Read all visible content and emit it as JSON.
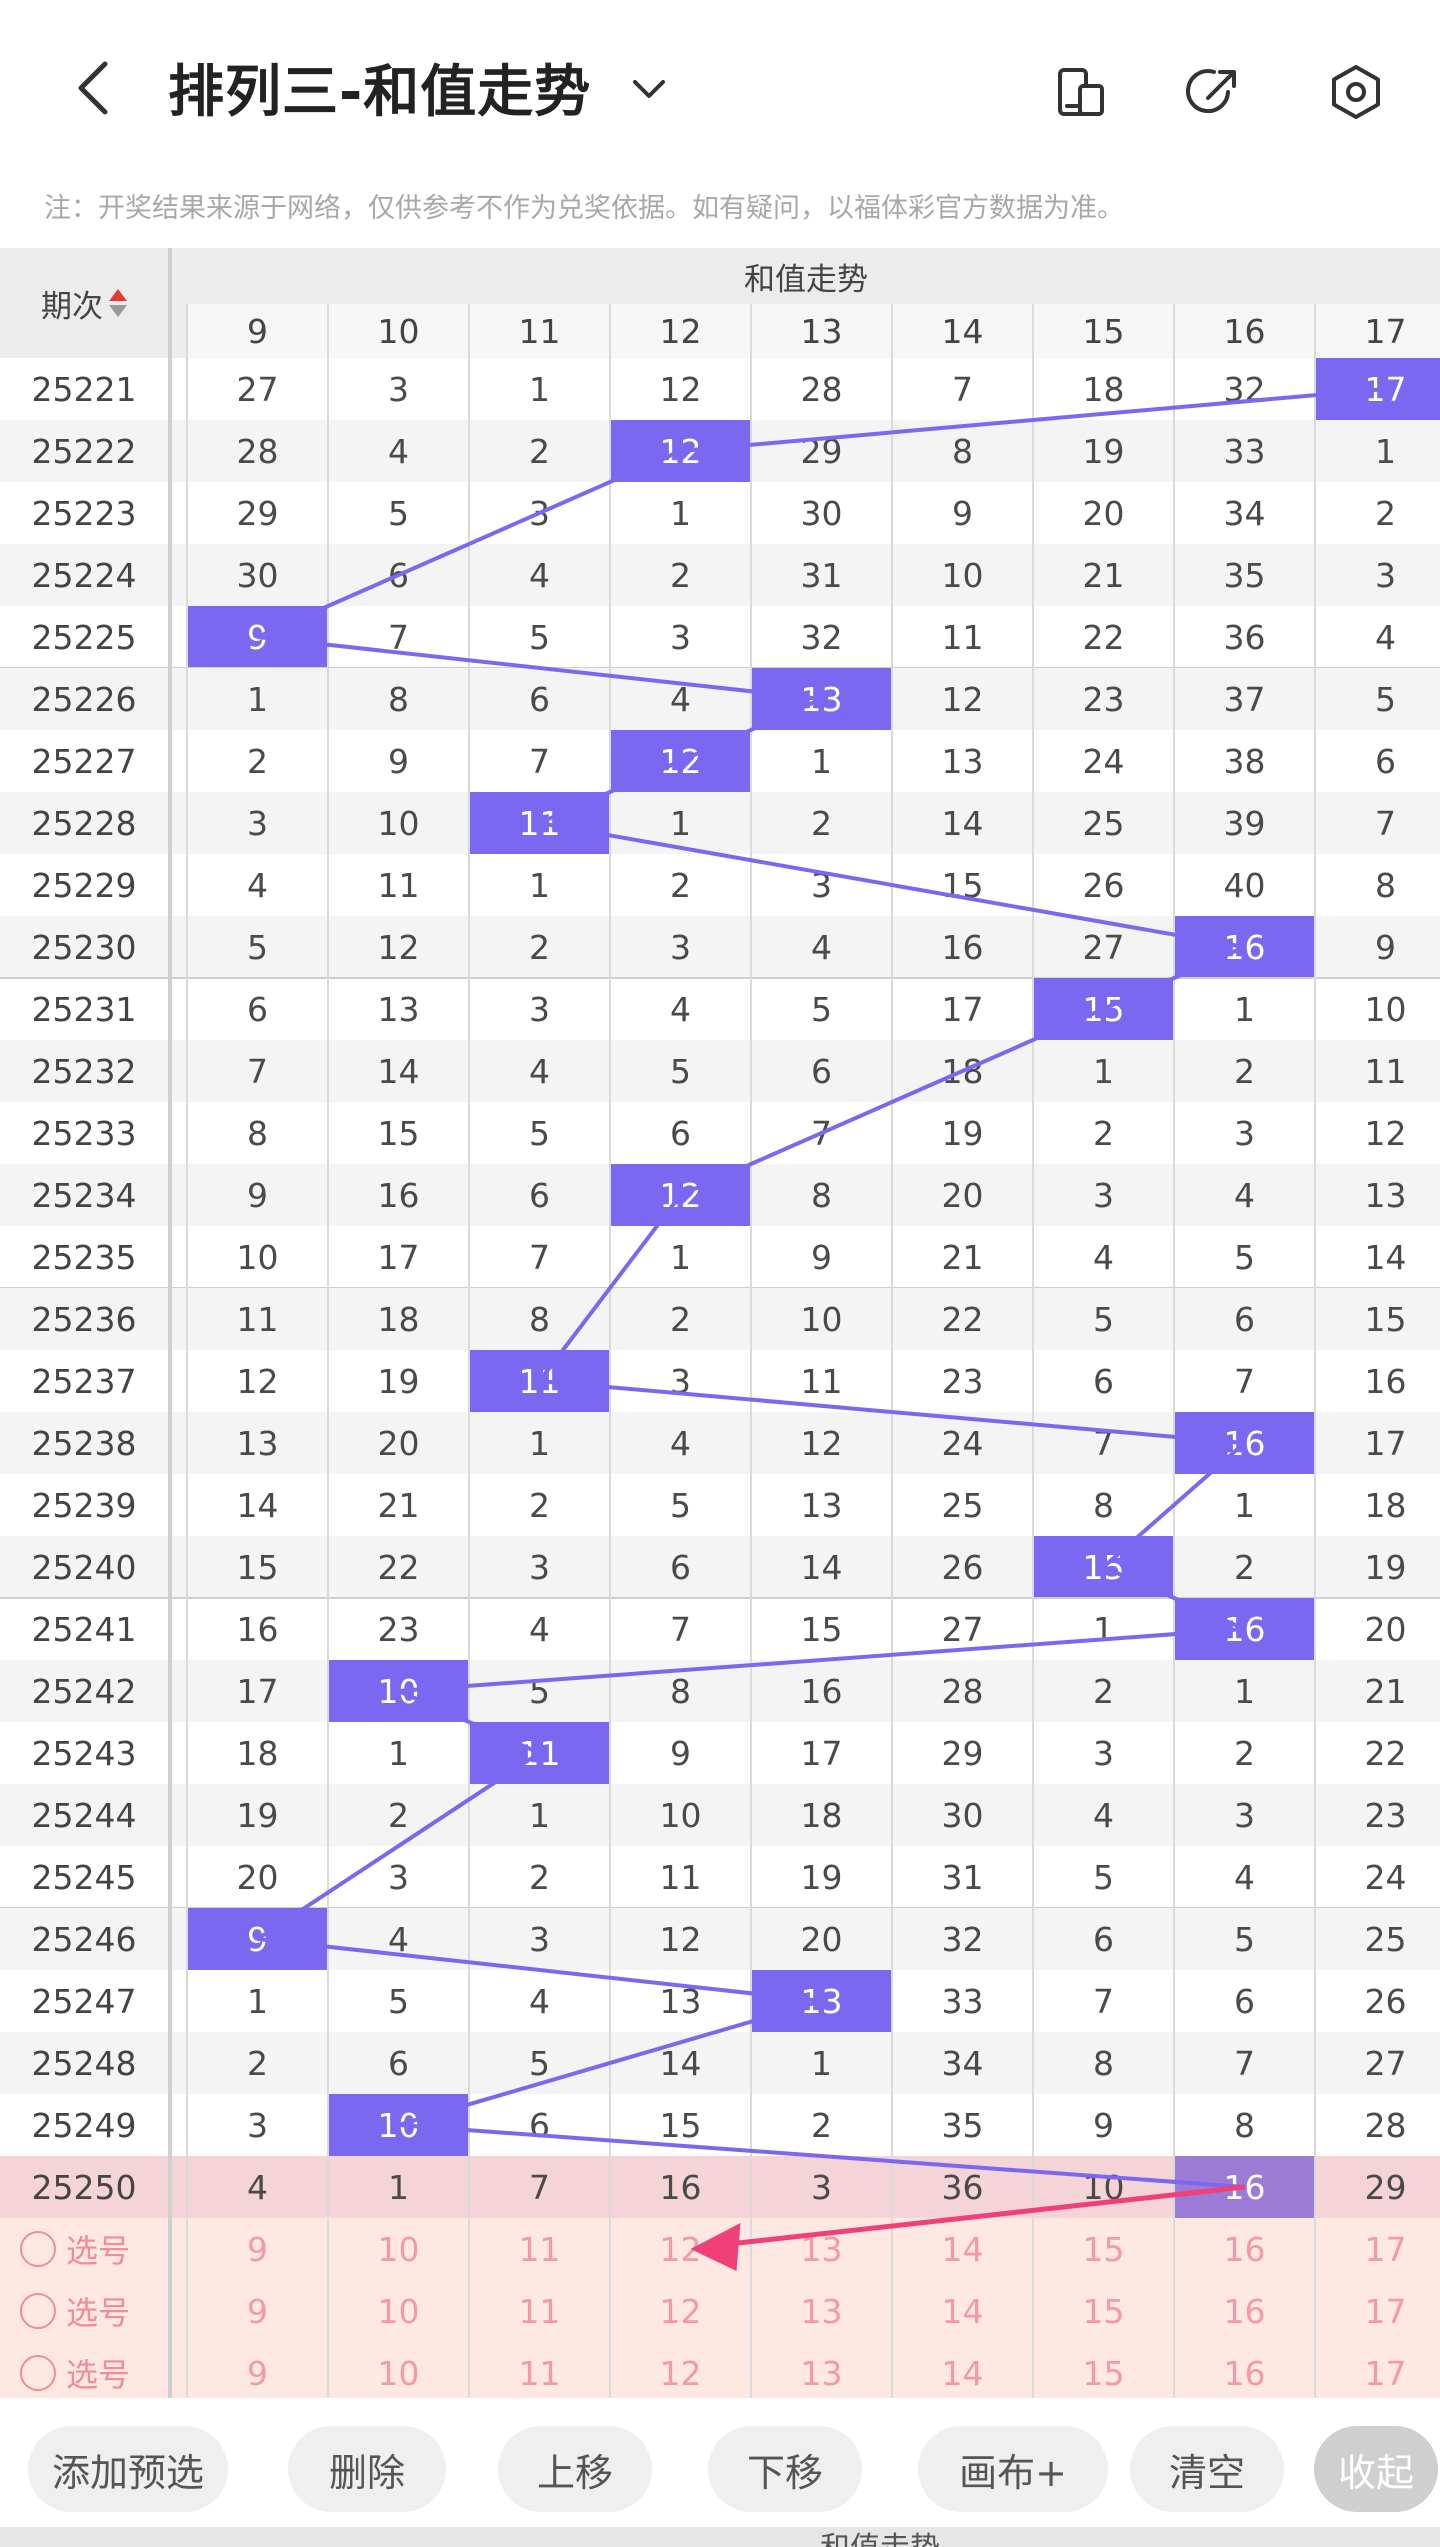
{
  "header": {
    "title": "排列三-和值走势",
    "back_icon": "chevron-left-icon",
    "dropdown_icon": "chevron-down-icon",
    "icons": [
      "phone-layout-icon",
      "share-arrow-icon",
      "settings-hexagon-icon"
    ]
  },
  "note": "注：开奖结果来源于网络，仅供参考不作为兑奖依据。如有疑问，以福体彩官方数据为准。",
  "table": {
    "period_header": "期次",
    "group_header": "和值走势",
    "columns": [
      "9",
      "10",
      "11",
      "12",
      "13",
      "14",
      "15",
      "16",
      "17"
    ],
    "rows": [
      {
        "period": "25221",
        "values": [
          "27",
          "3",
          "1",
          "12",
          "28",
          "7",
          "18",
          "32",
          "17"
        ],
        "hit": 8
      },
      {
        "period": "25222",
        "values": [
          "28",
          "4",
          "2",
          "12",
          "29",
          "8",
          "19",
          "33",
          "1"
        ],
        "hit": 3
      },
      {
        "period": "25223",
        "values": [
          "29",
          "5",
          "3",
          "1",
          "30",
          "9",
          "20",
          "34",
          "2"
        ],
        "hit": -1
      },
      {
        "period": "25224",
        "values": [
          "30",
          "6",
          "4",
          "2",
          "31",
          "10",
          "21",
          "35",
          "3"
        ],
        "hit": -1
      },
      {
        "period": "25225",
        "values": [
          "9",
          "7",
          "5",
          "3",
          "32",
          "11",
          "22",
          "36",
          "4"
        ],
        "hit": 0
      },
      {
        "period": "25226",
        "values": [
          "1",
          "8",
          "6",
          "4",
          "13",
          "12",
          "23",
          "37",
          "5"
        ],
        "hit": 4
      },
      {
        "period": "25227",
        "values": [
          "2",
          "9",
          "7",
          "12",
          "1",
          "13",
          "24",
          "38",
          "6"
        ],
        "hit": 3
      },
      {
        "period": "25228",
        "values": [
          "3",
          "10",
          "11",
          "1",
          "2",
          "14",
          "25",
          "39",
          "7"
        ],
        "hit": 2
      },
      {
        "period": "25229",
        "values": [
          "4",
          "11",
          "1",
          "2",
          "3",
          "15",
          "26",
          "40",
          "8"
        ],
        "hit": -1
      },
      {
        "period": "25230",
        "values": [
          "5",
          "12",
          "2",
          "3",
          "4",
          "16",
          "27",
          "16",
          "9"
        ],
        "hit": 7
      },
      {
        "period": "25231",
        "values": [
          "6",
          "13",
          "3",
          "4",
          "5",
          "17",
          "15",
          "1",
          "10"
        ],
        "hit": 6
      },
      {
        "period": "25232",
        "values": [
          "7",
          "14",
          "4",
          "5",
          "6",
          "18",
          "1",
          "2",
          "11"
        ],
        "hit": -1
      },
      {
        "period": "25233",
        "values": [
          "8",
          "15",
          "5",
          "6",
          "7",
          "19",
          "2",
          "3",
          "12"
        ],
        "hit": -1
      },
      {
        "period": "25234",
        "values": [
          "9",
          "16",
          "6",
          "12",
          "8",
          "20",
          "3",
          "4",
          "13"
        ],
        "hit": 3
      },
      {
        "period": "25235",
        "values": [
          "10",
          "17",
          "7",
          "1",
          "9",
          "21",
          "4",
          "5",
          "14"
        ],
        "hit": -1
      },
      {
        "period": "25236",
        "values": [
          "11",
          "18",
          "8",
          "2",
          "10",
          "22",
          "5",
          "6",
          "15"
        ],
        "hit": -1
      },
      {
        "period": "25237",
        "values": [
          "12",
          "19",
          "11",
          "3",
          "11",
          "23",
          "6",
          "7",
          "16"
        ],
        "hit": 2
      },
      {
        "period": "25238",
        "values": [
          "13",
          "20",
          "1",
          "4",
          "12",
          "24",
          "7",
          "16",
          "17"
        ],
        "hit": 7
      },
      {
        "period": "25239",
        "values": [
          "14",
          "21",
          "2",
          "5",
          "13",
          "25",
          "8",
          "1",
          "18"
        ],
        "hit": -1
      },
      {
        "period": "25240",
        "values": [
          "15",
          "22",
          "3",
          "6",
          "14",
          "26",
          "15",
          "2",
          "19"
        ],
        "hit": 6
      },
      {
        "period": "25241",
        "values": [
          "16",
          "23",
          "4",
          "7",
          "15",
          "27",
          "1",
          "16",
          "20"
        ],
        "hit": 7
      },
      {
        "period": "25242",
        "values": [
          "17",
          "10",
          "5",
          "8",
          "16",
          "28",
          "2",
          "1",
          "21"
        ],
        "hit": 1
      },
      {
        "period": "25243",
        "values": [
          "18",
          "1",
          "11",
          "9",
          "17",
          "29",
          "3",
          "2",
          "22"
        ],
        "hit": 2
      },
      {
        "period": "25244",
        "values": [
          "19",
          "2",
          "1",
          "10",
          "18",
          "30",
          "4",
          "3",
          "23"
        ],
        "hit": -1
      },
      {
        "period": "25245",
        "values": [
          "20",
          "3",
          "2",
          "11",
          "19",
          "31",
          "5",
          "4",
          "24"
        ],
        "hit": -1
      },
      {
        "period": "25246",
        "values": [
          "9",
          "4",
          "3",
          "12",
          "20",
          "32",
          "6",
          "5",
          "25"
        ],
        "hit": 0
      },
      {
        "period": "25247",
        "values": [
          "1",
          "5",
          "4",
          "13",
          "13",
          "33",
          "7",
          "6",
          "26"
        ],
        "hit": 4
      },
      {
        "period": "25248",
        "values": [
          "2",
          "6",
          "5",
          "14",
          "1",
          "34",
          "8",
          "7",
          "27"
        ],
        "hit": -1
      },
      {
        "period": "25249",
        "values": [
          "3",
          "10",
          "6",
          "15",
          "2",
          "35",
          "9",
          "8",
          "28"
        ],
        "hit": 1
      },
      {
        "period": "25250",
        "values": [
          "4",
          "1",
          "7",
          "16",
          "3",
          "36",
          "10",
          "16",
          "29"
        ],
        "hit": 7
      }
    ],
    "pick_rows": [
      {
        "label": "选号",
        "values": [
          "9",
          "10",
          "11",
          "12",
          "13",
          "14",
          "15",
          "16",
          "17"
        ]
      },
      {
        "label": "选号",
        "values": [
          "9",
          "10",
          "11",
          "12",
          "13",
          "14",
          "15",
          "16",
          "17"
        ]
      },
      {
        "label": "选号",
        "values": [
          "9",
          "10",
          "11",
          "12",
          "13",
          "14",
          "15",
          "16",
          "17"
        ]
      }
    ]
  },
  "buttons": [
    "添加预选",
    "删除",
    "上移",
    "下移",
    "画布+",
    "清空",
    "收起"
  ],
  "footer_partial": "和值走势",
  "colors": {
    "hit": "#7b68f0",
    "line": "#7b68f0",
    "arrow": "#f0407a",
    "last_row": "#f4d4d6",
    "pick_row": "#fde8e2"
  }
}
